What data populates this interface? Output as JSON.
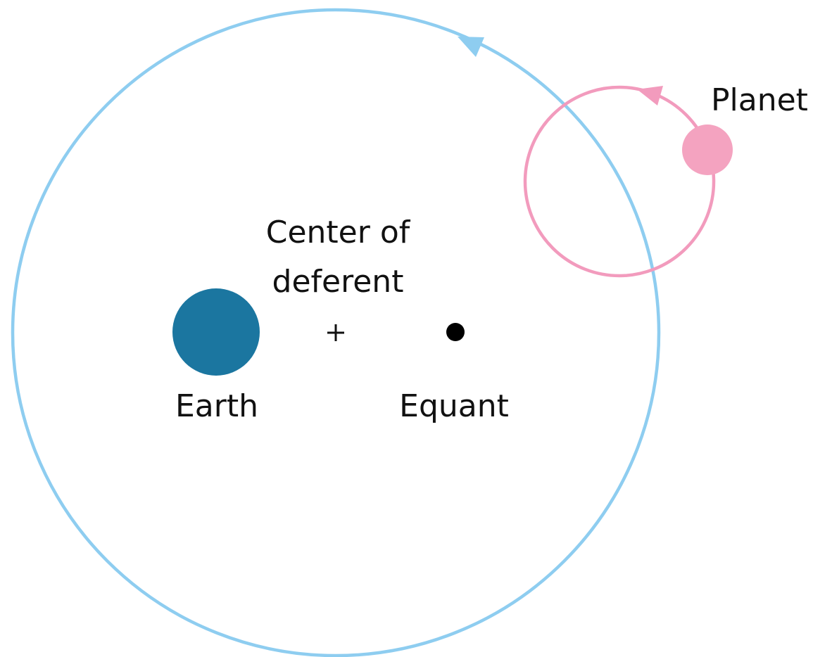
{
  "labels": {
    "planet": "Planet",
    "center_of_deferent": [
      "Center of",
      "deferent"
    ],
    "earth": "Earth",
    "equant": "Equant"
  }
}
